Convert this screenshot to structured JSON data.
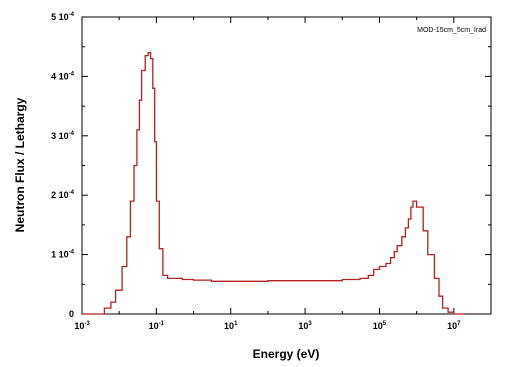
{
  "chart_data": {
    "type": "line",
    "title": "",
    "xlabel": "Energy (eV)",
    "ylabel": "Neutron Flux / Lethargy",
    "x_scale": "log",
    "xlim_exp": [
      -3,
      8
    ],
    "ylim": [
      0,
      0.0005
    ],
    "grid": false,
    "legend_position": "top-right",
    "line_color": "#b22222",
    "x_ticks": [
      {
        "base": "10",
        "exp": "-3"
      },
      {
        "base": "10",
        "exp": "-1"
      },
      {
        "base": "10",
        "exp": "1"
      },
      {
        "base": "10",
        "exp": "3"
      },
      {
        "base": "10",
        "exp": "5"
      },
      {
        "base": "10",
        "exp": "7"
      }
    ],
    "x_tick_values_exp": [
      -3,
      -1,
      1,
      3,
      5,
      7
    ],
    "y_ticks": [
      {
        "base": "0",
        "exp": ""
      },
      {
        "base": "1 10",
        "exp": "-4"
      },
      {
        "base": "2 10",
        "exp": "-4"
      },
      {
        "base": "3 10",
        "exp": "-4"
      },
      {
        "base": "4 10",
        "exp": "-4"
      },
      {
        "base": "5 10",
        "exp": "-4"
      }
    ],
    "y_tick_values": [
      0,
      0.0001,
      0.0002,
      0.0003,
      0.0004,
      0.0005
    ],
    "series": [
      {
        "name": "MOD-15cm_5cm_Irad",
        "x": [
          0.001,
          0.002,
          0.004,
          0.006,
          0.008,
          0.012,
          0.016,
          0.02,
          0.025,
          0.03,
          0.035,
          0.04,
          0.05,
          0.06,
          0.07,
          0.08,
          0.09,
          0.1,
          0.12,
          0.15,
          0.2,
          0.5,
          1,
          3,
          10,
          100,
          1000,
          10000,
          30000,
          50000,
          70000,
          100000,
          150000,
          200000,
          250000,
          300000,
          400000,
          500000,
          600000,
          700000,
          800000,
          1000000,
          1500000,
          2000000,
          3000000,
          4000000,
          5000000,
          7000000,
          10000000,
          20000000
        ],
        "y": [
          0,
          0,
          1e-05,
          2e-05,
          4e-05,
          8e-05,
          0.00013,
          0.00019,
          0.00025,
          0.00031,
          0.00036,
          0.00041,
          0.000435,
          0.00044,
          0.00043,
          0.00038,
          0.00029,
          0.00019,
          0.00011,
          6.5e-05,
          6e-05,
          5.8e-05,
          5.7e-05,
          5.5e-05,
          5.5e-05,
          5.6e-05,
          5.6e-05,
          5.8e-05,
          6e-05,
          6.5e-05,
          7.5e-05,
          8e-05,
          8.5e-05,
          9.5e-05,
          0.000105,
          0.000115,
          0.00013,
          0.000145,
          0.00016,
          0.00018,
          0.00019,
          0.00018,
          0.00014,
          0.0001,
          6e-05,
          3e-05,
          1e-05,
          3e-06,
          0,
          0
        ]
      }
    ]
  }
}
